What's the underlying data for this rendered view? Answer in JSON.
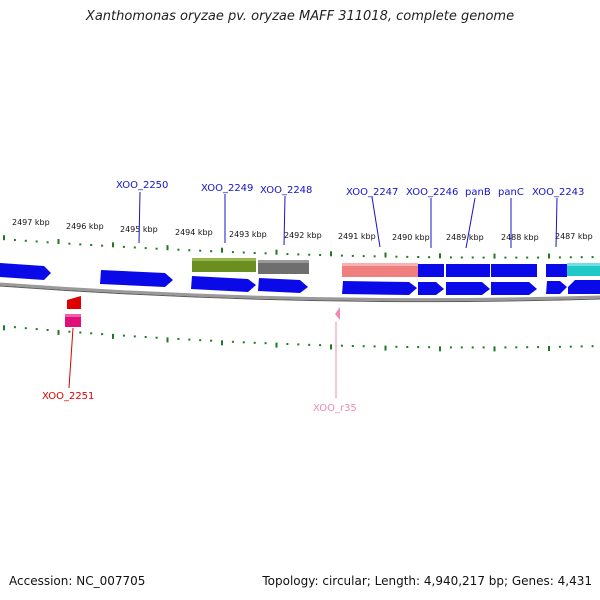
{
  "title": "Xanthomonas oryzae pv. oryzae MAFF 311018, complete genome",
  "footer": {
    "accession": "Accession: NC_007705",
    "summary": "Topology: circular; Length: 4,940,217 bp; Genes: 4,431"
  },
  "kbp_labels": [
    "2497 kbp",
    "2496 kbp",
    "2495 kbp",
    "2494 kbp",
    "2493 kbp",
    "2492 kbp",
    "2491 kbp",
    "2490 kbp",
    "2489 kbp",
    "2488 kbp",
    "2487 kbp"
  ],
  "gene_labels_top": [
    "XOO_2250",
    "XOO_2249",
    "XOO_2248",
    "XOO_2247",
    "XOO_2246",
    "panB",
    "panC",
    "XOO_2243"
  ],
  "gene_labels_bottom": [
    {
      "label": "XOO_2251",
      "color": "#e00000"
    },
    {
      "label": "XOO_r35",
      "color": "#f088b8"
    }
  ],
  "colors": {
    "cds": "#0a0ae8",
    "backbone": "#808080",
    "tick": "#1e7a1e",
    "olive": "#6b8e23",
    "gray_feature": "#6e6e6e",
    "salmon": "#f08080",
    "cyan": "#20c8c8",
    "red_gene": "#e00000",
    "magenta_gene": "#e0107a",
    "pink_rna": "#f088b8"
  }
}
